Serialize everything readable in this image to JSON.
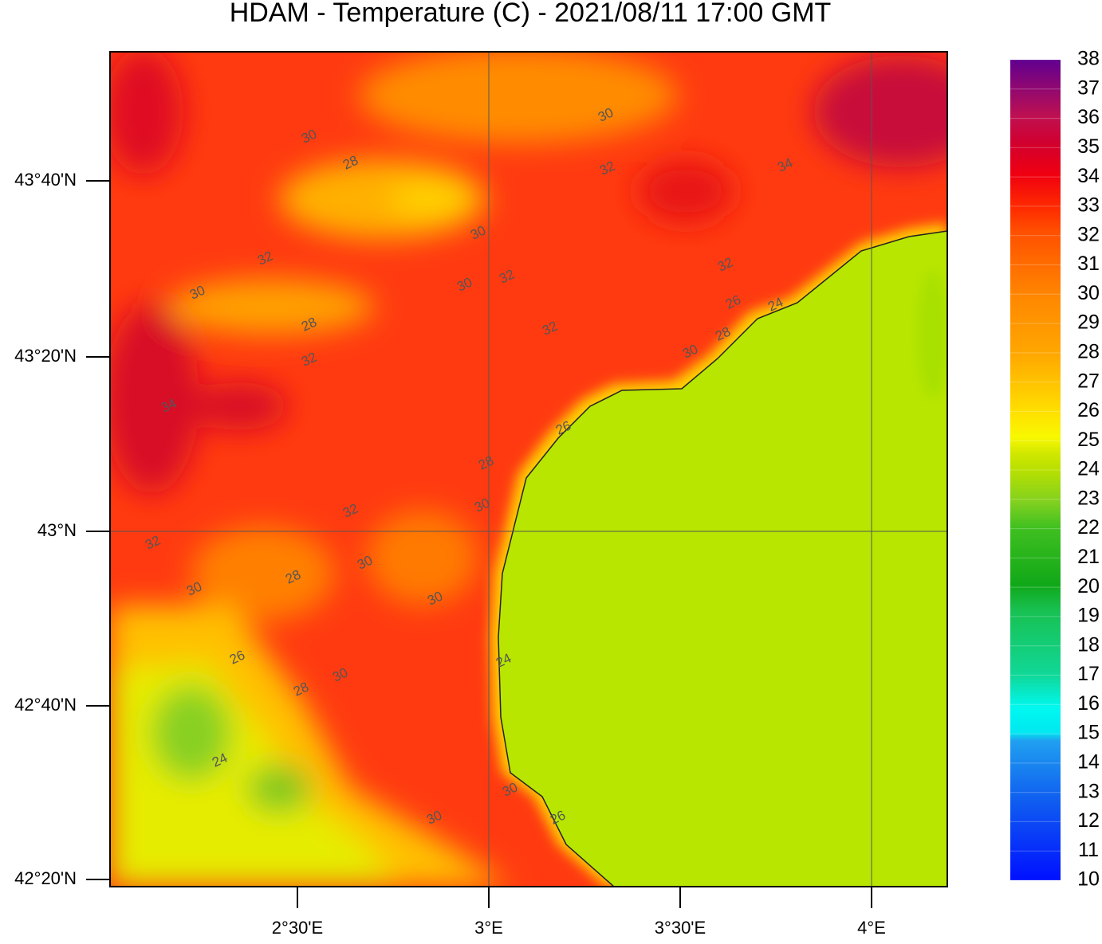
{
  "title": "HDAM - Temperature (C)  -  2021/08/11  17:00 GMT",
  "lat_ticks": [
    "43°40'N",
    "43°20'N",
    "43°N",
    "42°40'N",
    "42°20'N"
  ],
  "lon_ticks": [
    "2°30'E",
    "3°E",
    "3°30'E",
    "4°E"
  ],
  "colorbar": {
    "ticks": [
      10,
      11,
      12,
      13,
      14,
      15,
      16,
      17,
      18,
      19,
      20,
      21,
      22,
      23,
      24,
      25,
      26,
      27,
      28,
      29,
      30,
      31,
      32,
      33,
      34,
      35,
      36,
      37,
      38
    ]
  },
  "contour_labels": [
    30,
    28,
    30,
    32,
    34,
    30,
    32,
    30,
    30,
    32,
    28,
    32,
    32,
    26,
    24,
    28,
    30,
    32,
    34,
    26,
    28,
    30,
    32,
    32,
    30,
    28,
    30,
    30,
    26,
    30,
    28,
    24,
    24,
    30,
    30,
    26
  ]
}
